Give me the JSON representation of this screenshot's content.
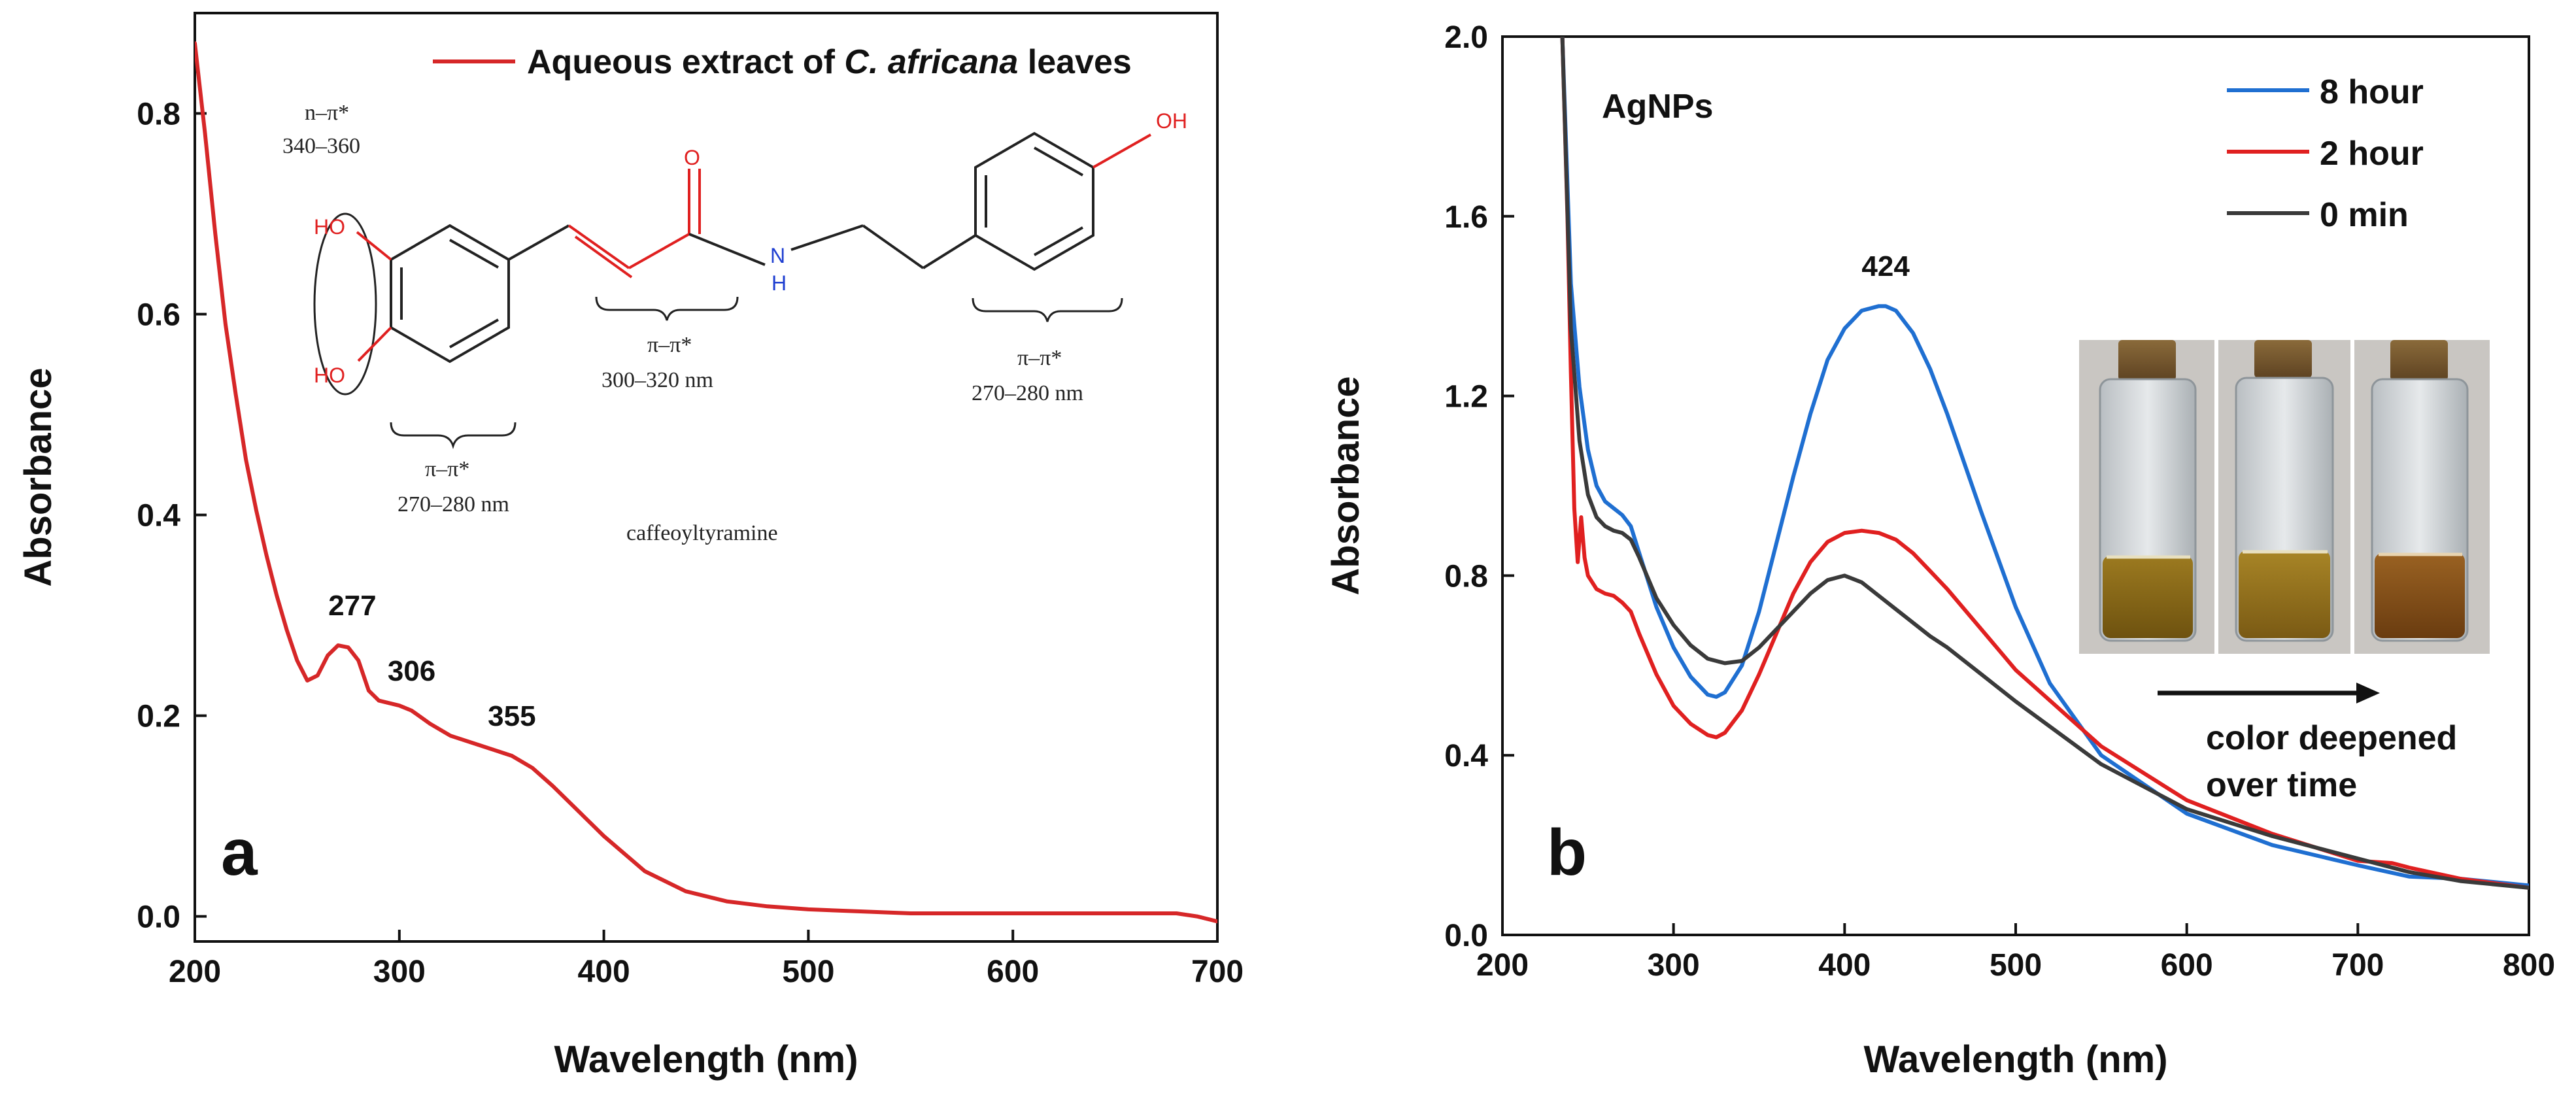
{
  "colors": {
    "extract": "#d62728",
    "h8": "#1f6fd1",
    "h2": "#e02020",
    "m0": "#3a3a3a",
    "axis": "#111111",
    "oxygen": "#e02020",
    "nitrogen": "#1f3fd1"
  },
  "chart_data": [
    {
      "type": "line",
      "panel_label": "a",
      "title": "",
      "xlabel": "Wavelength (nm)",
      "ylabel": "Absorbance",
      "xlim": [
        200,
        700
      ],
      "ylim": [
        -0.025,
        0.9
      ],
      "xticks": [
        200,
        300,
        400,
        500,
        600,
        700
      ],
      "yticks": [
        0.0,
        0.2,
        0.4,
        0.6,
        0.8
      ],
      "ytick_labels": [
        "0.0",
        "0.2",
        "0.4",
        "0.6",
        "0.8"
      ],
      "legend": {
        "position": "top-center",
        "entries": [
          "Aqueous extract of C. africana leaves"
        ]
      },
      "legend_parts": {
        "prefix": "Aqueous extract of ",
        "italic": "C. africana",
        "suffix": " leaves"
      },
      "series": [
        {
          "name": "Aqueous extract of C. africana leaves",
          "color_key": "extract",
          "x": [
            200,
            205,
            210,
            215,
            220,
            225,
            230,
            235,
            240,
            245,
            250,
            255,
            260,
            265,
            270,
            275,
            280,
            285,
            290,
            300,
            306,
            315,
            325,
            340,
            355,
            365,
            375,
            390,
            400,
            420,
            440,
            460,
            480,
            500,
            550,
            600,
            650,
            680,
            690,
            700
          ],
          "y": [
            0.87,
            0.78,
            0.68,
            0.59,
            0.52,
            0.455,
            0.405,
            0.36,
            0.32,
            0.285,
            0.255,
            0.235,
            0.24,
            0.26,
            0.27,
            0.268,
            0.255,
            0.225,
            0.215,
            0.21,
            0.205,
            0.192,
            0.18,
            0.17,
            0.16,
            0.148,
            0.13,
            0.1,
            0.08,
            0.045,
            0.025,
            0.015,
            0.01,
            0.007,
            0.003,
            0.003,
            0.003,
            0.003,
            0.0,
            -0.005
          ]
        }
      ],
      "peak_labels": [
        {
          "x": 277,
          "y": 0.27,
          "text": "277"
        },
        {
          "x": 306,
          "y": 0.205,
          "text": "306"
        },
        {
          "x": 355,
          "y": 0.16,
          "text": "355"
        }
      ],
      "inset_structure": {
        "name": "caffeoyltyramine",
        "atom_labels": [
          "HO",
          "HO",
          "O",
          "N",
          "H",
          "OH"
        ],
        "annotations": [
          {
            "line1": "n–π*",
            "line2": "340–360"
          },
          {
            "line1": "π–π*",
            "line2": "270–280 nm"
          },
          {
            "line1": "π–π*",
            "line2": "300–320 nm"
          },
          {
            "line1": "π–π*",
            "line2": "270–280 nm"
          }
        ]
      }
    },
    {
      "type": "line",
      "panel_label": "b",
      "title": "AgNPs",
      "xlabel": "Wavelength (nm)",
      "ylabel": "Absorbance",
      "xlim": [
        200,
        800
      ],
      "ylim": [
        0.0,
        2.0
      ],
      "xticks": [
        200,
        300,
        400,
        500,
        600,
        700,
        800
      ],
      "yticks": [
        0.0,
        0.4,
        0.8,
        1.2,
        1.6,
        2.0
      ],
      "ytick_labels": [
        "0.0",
        "0.4",
        "0.8",
        "1.2",
        "1.6",
        "2.0"
      ],
      "legend": {
        "position": "top-right",
        "entries": [
          "8 hour",
          "2 hour",
          "0 min"
        ]
      },
      "series": [
        {
          "name": "8 hour",
          "color_key": "h8",
          "x": [
            235,
            240,
            245,
            250,
            255,
            260,
            265,
            270,
            275,
            280,
            290,
            300,
            310,
            320,
            325,
            330,
            340,
            350,
            360,
            370,
            380,
            390,
            400,
            410,
            420,
            424,
            430,
            440,
            450,
            460,
            470,
            480,
            500,
            520,
            550,
            600,
            650,
            700,
            730,
            760,
            800
          ],
          "y": [
            2.0,
            1.45,
            1.22,
            1.08,
            1.0,
            0.965,
            0.95,
            0.935,
            0.91,
            0.85,
            0.73,
            0.64,
            0.575,
            0.535,
            0.53,
            0.54,
            0.6,
            0.72,
            0.87,
            1.02,
            1.16,
            1.28,
            1.35,
            1.39,
            1.4,
            1.4,
            1.39,
            1.34,
            1.26,
            1.16,
            1.05,
            0.94,
            0.73,
            0.56,
            0.4,
            0.27,
            0.2,
            0.155,
            0.13,
            0.125,
            0.11
          ]
        },
        {
          "name": "2 hour",
          "color_key": "h2",
          "x": [
            235,
            238,
            240,
            242,
            244,
            246,
            248,
            250,
            255,
            260,
            265,
            270,
            275,
            280,
            290,
            300,
            310,
            320,
            325,
            330,
            340,
            350,
            360,
            370,
            380,
            390,
            400,
            410,
            420,
            430,
            440,
            450,
            460,
            480,
            500,
            550,
            600,
            650,
            700,
            720,
            730,
            760,
            800
          ],
          "y": [
            2.0,
            1.6,
            1.25,
            0.95,
            0.83,
            0.93,
            0.84,
            0.8,
            0.77,
            0.76,
            0.755,
            0.74,
            0.72,
            0.67,
            0.58,
            0.51,
            0.47,
            0.445,
            0.44,
            0.45,
            0.5,
            0.58,
            0.67,
            0.76,
            0.83,
            0.875,
            0.895,
            0.9,
            0.895,
            0.88,
            0.85,
            0.81,
            0.77,
            0.68,
            0.59,
            0.42,
            0.3,
            0.225,
            0.165,
            0.16,
            0.15,
            0.125,
            0.105
          ]
        },
        {
          "name": "0 min",
          "color_key": "m0",
          "x": [
            235,
            240,
            245,
            250,
            255,
            260,
            265,
            270,
            275,
            280,
            290,
            300,
            310,
            320,
            330,
            340,
            350,
            360,
            370,
            380,
            390,
            400,
            410,
            420,
            430,
            440,
            450,
            460,
            480,
            500,
            550,
            600,
            650,
            700,
            730,
            760,
            800
          ],
          "y": [
            2.0,
            1.35,
            1.1,
            0.98,
            0.93,
            0.91,
            0.9,
            0.895,
            0.88,
            0.84,
            0.75,
            0.69,
            0.645,
            0.615,
            0.605,
            0.61,
            0.64,
            0.68,
            0.72,
            0.76,
            0.79,
            0.8,
            0.785,
            0.755,
            0.725,
            0.695,
            0.665,
            0.64,
            0.58,
            0.52,
            0.38,
            0.28,
            0.22,
            0.17,
            0.14,
            0.12,
            0.105
          ]
        }
      ],
      "peak_labels": [
        {
          "x": 424,
          "y": 1.4,
          "text": "424"
        }
      ],
      "inset_photo": {
        "vials": 3,
        "caption": "color deepened over time",
        "caption_lines": [
          "color deepened",
          "over time"
        ]
      }
    }
  ]
}
